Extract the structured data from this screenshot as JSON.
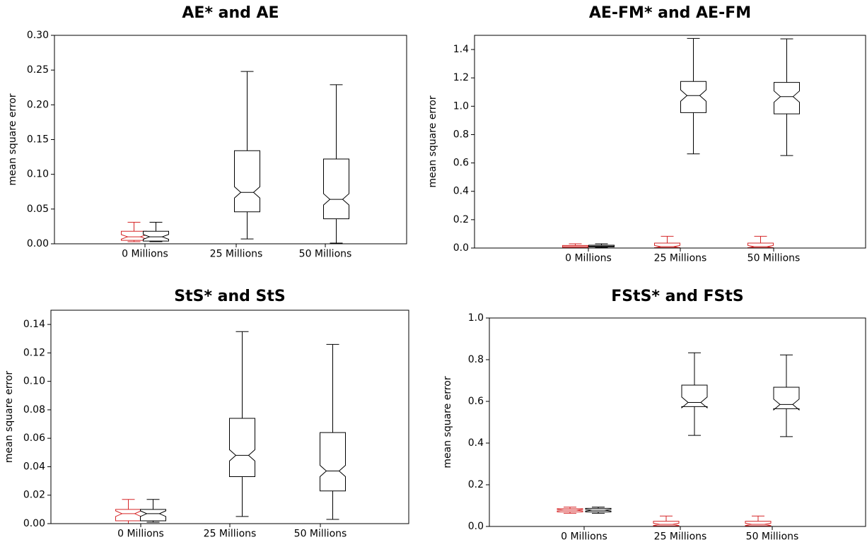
{
  "chart_data": [
    {
      "type": "box",
      "title": "AE* and AE",
      "ylabel": "mean square error",
      "xlabel": "",
      "ylim": [
        0,
        0.3
      ],
      "yticks": [
        "0.00",
        "0.05",
        "0.10",
        "0.15",
        "0.20",
        "0.25",
        "0.30"
      ],
      "categories": [
        "0 Millions",
        "25 Millions",
        "50 Millions"
      ],
      "grid": false,
      "notched": true,
      "series": [
        {
          "color": "#d62728",
          "boxes": [
            {
              "category": "0 Millions",
              "whislo": 0.003,
              "q1": 0.005,
              "med": 0.01,
              "q3": 0.018,
              "whishi": 0.031
            },
            {
              "category": "25 Millions",
              "whislo": 0.0,
              "q1": 0.0,
              "med": 0.0,
              "q3": 0.0,
              "whishi": 0.0
            },
            {
              "category": "50 Millions",
              "whislo": 0.0,
              "q1": 0.0,
              "med": 0.0,
              "q3": 0.0,
              "whishi": 0.0
            }
          ]
        },
        {
          "color": "#000000",
          "boxes": [
            {
              "category": "0 Millions",
              "whislo": 0.003,
              "q1": 0.004,
              "med": 0.01,
              "q3": 0.018,
              "whishi": 0.031
            },
            {
              "category": "25 Millions",
              "whislo": 0.007,
              "q1": 0.046,
              "med": 0.074,
              "q3": 0.134,
              "whishi": 0.248
            },
            {
              "category": "50 Millions",
              "whislo": 0.001,
              "q1": 0.036,
              "med": 0.064,
              "q3": 0.122,
              "whishi": 0.229
            }
          ]
        }
      ]
    },
    {
      "type": "box",
      "title": "AE-FM* and AE-FM",
      "ylabel": "mean square error",
      "xlabel": "",
      "ylim": [
        0,
        1.5
      ],
      "yticks": [
        "0.0",
        "0.2",
        "0.4",
        "0.6",
        "0.8",
        "1.0",
        "1.2",
        "1.4"
      ],
      "categories": [
        "0 Millions",
        "25 Millions",
        "50 Millions"
      ],
      "grid": false,
      "notched": true,
      "series": [
        {
          "color": "#d62728",
          "boxes": [
            {
              "category": "0 Millions",
              "whislo": 0.002,
              "q1": 0.004,
              "med": 0.01,
              "q3": 0.018,
              "whishi": 0.03
            },
            {
              "category": "25 Millions",
              "whislo": 0.0,
              "q1": 0.003,
              "med": 0.01,
              "q3": 0.035,
              "whishi": 0.083
            },
            {
              "category": "50 Millions",
              "whislo": 0.0,
              "q1": 0.003,
              "med": 0.01,
              "q3": 0.035,
              "whishi": 0.083
            }
          ]
        },
        {
          "color": "#000000",
          "boxes": [
            {
              "category": "0 Millions",
              "whislo": 0.003,
              "q1": 0.008,
              "med": 0.013,
              "q3": 0.02,
              "whishi": 0.03
            },
            {
              "category": "25 Millions",
              "whislo": 0.664,
              "q1": 0.955,
              "med": 1.075,
              "q3": 1.175,
              "whishi": 1.478
            },
            {
              "category": "50 Millions",
              "whislo": 0.652,
              "q1": 0.946,
              "med": 1.068,
              "q3": 1.168,
              "whishi": 1.475
            }
          ]
        }
      ]
    },
    {
      "type": "box",
      "title": "StS* and StS",
      "ylabel": "mean square error",
      "xlabel": "",
      "ylim": [
        0,
        0.15
      ],
      "yticks": [
        "0.00",
        "0.02",
        "0.04",
        "0.06",
        "0.08",
        "0.10",
        "0.12",
        "0.14"
      ],
      "categories": [
        "0 Millions",
        "25 Millions",
        "50 Millions"
      ],
      "grid": false,
      "notched": true,
      "series": [
        {
          "color": "#d62728",
          "boxes": [
            {
              "category": "0 Millions",
              "whislo": 0.0,
              "q1": 0.002,
              "med": 0.007,
              "q3": 0.01,
              "whishi": 0.017
            },
            {
              "category": "25 Millions",
              "whislo": 0.0,
              "q1": 0.0,
              "med": 0.0,
              "q3": 0.0,
              "whishi": 0.0
            },
            {
              "category": "50 Millions",
              "whislo": 0.0,
              "q1": 0.0,
              "med": 0.0,
              "q3": 0.0,
              "whishi": 0.0
            }
          ]
        },
        {
          "color": "#000000",
          "boxes": [
            {
              "category": "0 Millions",
              "whislo": 0.001,
              "q1": 0.002,
              "med": 0.007,
              "q3": 0.01,
              "whishi": 0.017
            },
            {
              "category": "25 Millions",
              "whislo": 0.005,
              "q1": 0.033,
              "med": 0.048,
              "q3": 0.074,
              "whishi": 0.135
            },
            {
              "category": "50 Millions",
              "whislo": 0.003,
              "q1": 0.023,
              "med": 0.037,
              "q3": 0.064,
              "whishi": 0.126
            }
          ]
        }
      ]
    },
    {
      "type": "box",
      "title": "FStS* and FStS",
      "ylabel": "mean square error",
      "xlabel": "",
      "ylim": [
        0,
        1.0
      ],
      "yticks": [
        "0.0",
        "0.2",
        "0.4",
        "0.6",
        "0.8",
        "1.0"
      ],
      "categories": [
        "0 Millions",
        "25 Millions",
        "50 Millions"
      ],
      "grid": false,
      "notched": true,
      "series": [
        {
          "color": "#d62728",
          "boxes": [
            {
              "category": "0 Millions",
              "whislo": 0.063,
              "q1": 0.07,
              "med": 0.078,
              "q3": 0.085,
              "whishi": 0.093
            },
            {
              "category": "25 Millions",
              "whislo": 0.0,
              "q1": 0.003,
              "med": 0.01,
              "q3": 0.025,
              "whishi": 0.05
            },
            {
              "category": "50 Millions",
              "whislo": 0.0,
              "q1": 0.003,
              "med": 0.01,
              "q3": 0.025,
              "whishi": 0.05
            }
          ]
        },
        {
          "color": "#000000",
          "boxes": [
            {
              "category": "0 Millions",
              "whislo": 0.063,
              "q1": 0.07,
              "med": 0.078,
              "q3": 0.087,
              "whishi": 0.093
            },
            {
              "category": "25 Millions",
              "whislo": 0.437,
              "q1": 0.575,
              "med": 0.595,
              "q3": 0.678,
              "whishi": 0.833
            },
            {
              "category": "50 Millions",
              "whislo": 0.431,
              "q1": 0.565,
              "med": 0.585,
              "q3": 0.668,
              "whishi": 0.823
            }
          ]
        }
      ]
    }
  ]
}
